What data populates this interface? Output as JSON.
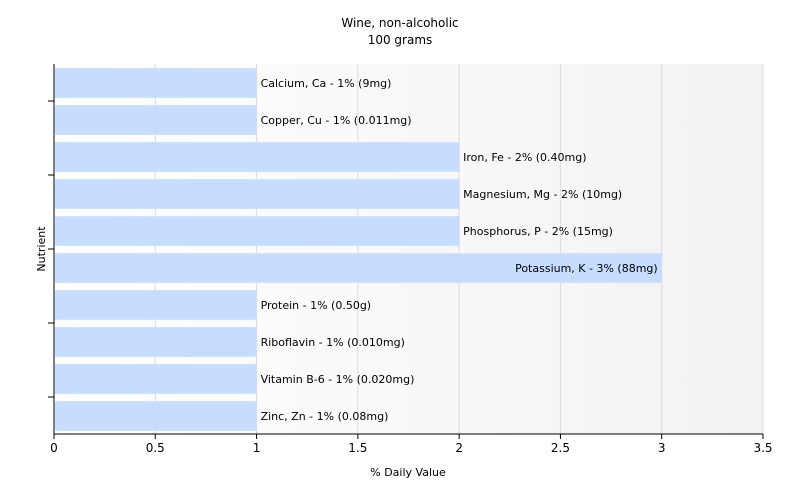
{
  "chart_data": {
    "type": "bar",
    "orientation": "horizontal",
    "title": "Wine, non-alcoholic",
    "subtitle": "100 grams",
    "xlabel": "% Daily Value",
    "ylabel": "Nutrient",
    "xlim": [
      0,
      3.5
    ],
    "xticks": [
      "0",
      "0.5",
      "1",
      "1.5",
      "2",
      "2.5",
      "3",
      "3.5"
    ],
    "grid": true,
    "bar_color": "#c6ddff",
    "categories": [
      "Calcium, Ca",
      "Copper, Cu",
      "Iron, Fe",
      "Magnesium, Mg",
      "Phosphorus, P",
      "Potassium, K",
      "Protein",
      "Riboflavin",
      "Vitamin B-6",
      "Zinc, Zn"
    ],
    "values": [
      1,
      1,
      2,
      2,
      2,
      3,
      1,
      1,
      1,
      1
    ],
    "labels": [
      "Calcium, Ca - 1% (9mg)",
      "Copper, Cu - 1% (0.011mg)",
      "Iron, Fe - 2% (0.40mg)",
      "Magnesium, Mg - 2% (10mg)",
      "Phosphorus, P - 2% (15mg)",
      "Potassium, K - 3% (88mg)",
      "Protein - 1% (0.50g)",
      "Riboflavin - 1% (0.010mg)",
      "Vitamin B-6 - 1% (0.020mg)",
      "Zinc, Zn - 1% (0.08mg)"
    ]
  }
}
